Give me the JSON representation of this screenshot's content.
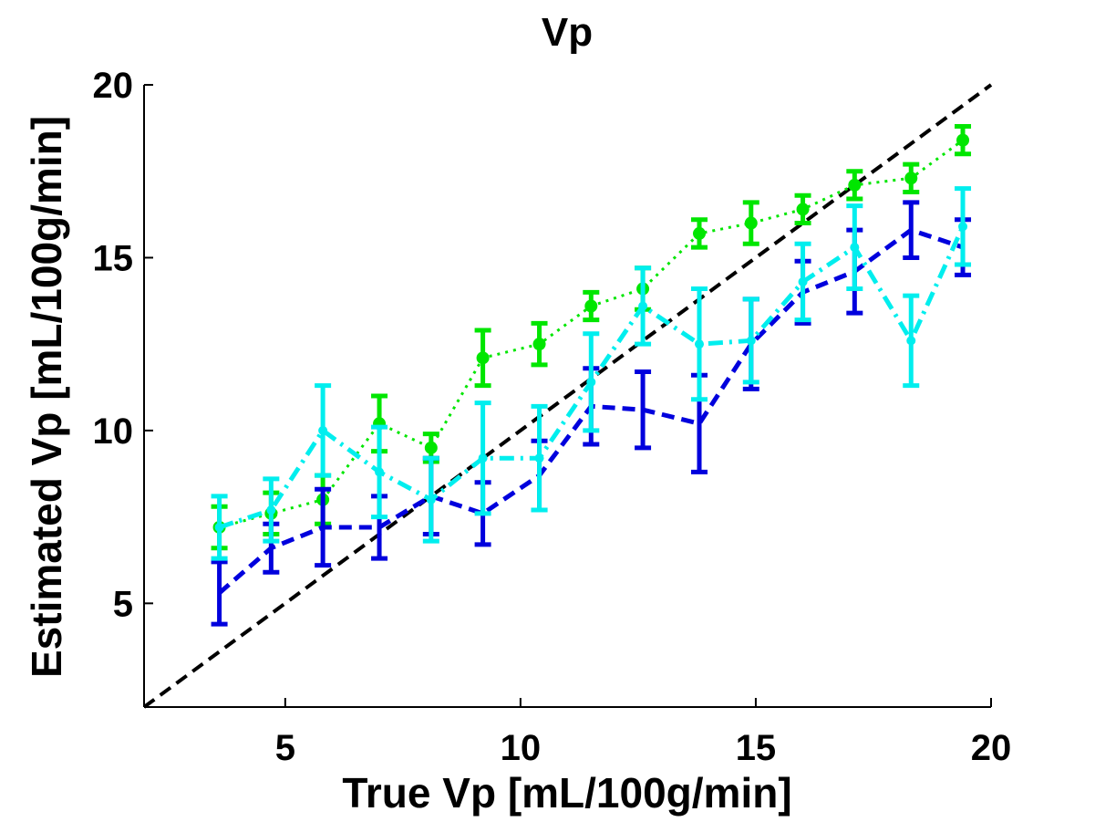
{
  "chart_data": {
    "type": "line",
    "title": "Vp",
    "xlabel": "True Vp [mL/100g/min]",
    "ylabel": "Estimated Vp [mL/100g/min]",
    "xlim": [
      2,
      20
    ],
    "ylim": [
      2,
      20
    ],
    "xticks": [
      5,
      10,
      15,
      20
    ],
    "yticks": [
      5,
      10,
      15,
      20
    ],
    "grid": false,
    "legend": "none",
    "identity_line": {
      "x": [
        2,
        20
      ],
      "y": [
        2,
        20
      ],
      "color": "#000000",
      "style": "dashed"
    },
    "series": [
      {
        "color": "#00e600",
        "style": "dotted",
        "marker": "circle",
        "x": [
          3.6,
          4.7,
          5.8,
          7.0,
          8.1,
          9.2,
          10.4,
          11.5,
          12.6,
          13.8,
          14.9,
          16.0,
          17.1,
          18.3,
          19.4
        ],
        "y": [
          7.2,
          7.6,
          8.0,
          10.2,
          9.5,
          12.1,
          12.5,
          13.6,
          14.1,
          15.7,
          16.0,
          16.4,
          17.1,
          17.3,
          18.4
        ],
        "err": [
          0.6,
          0.6,
          0.7,
          0.8,
          0.4,
          0.8,
          0.6,
          0.4,
          0.6,
          0.4,
          0.6,
          0.4,
          0.4,
          0.4,
          0.4
        ]
      },
      {
        "color": "#0000dd",
        "style": "dashed",
        "marker": "none",
        "x": [
          3.6,
          4.7,
          5.8,
          7.0,
          8.1,
          9.2,
          10.4,
          11.5,
          12.6,
          13.8,
          14.9,
          16.0,
          17.1,
          18.3,
          19.4
        ],
        "y": [
          5.3,
          6.6,
          7.2,
          7.2,
          8.1,
          7.6,
          8.7,
          10.7,
          10.6,
          10.2,
          12.5,
          14.0,
          14.6,
          15.8,
          15.3
        ],
        "err": [
          0.9,
          0.7,
          1.1,
          0.9,
          1.1,
          0.9,
          1.0,
          1.1,
          1.1,
          1.4,
          1.3,
          0.9,
          1.2,
          0.8,
          0.8
        ]
      },
      {
        "color": "#00eeee",
        "style": "dash-dot",
        "marker": "circle-small",
        "x": [
          3.6,
          4.7,
          5.8,
          7.0,
          8.1,
          9.2,
          10.4,
          11.5,
          12.6,
          13.8,
          14.9,
          16.0,
          17.1,
          18.3,
          19.4
        ],
        "y": [
          7.2,
          7.7,
          10.0,
          8.8,
          8.0,
          9.2,
          9.2,
          11.4,
          13.6,
          12.5,
          12.6,
          14.3,
          15.3,
          12.6,
          15.9
        ],
        "err": [
          0.9,
          0.9,
          1.3,
          1.3,
          1.2,
          1.6,
          1.5,
          1.4,
          1.1,
          1.6,
          1.2,
          1.1,
          1.2,
          1.3,
          1.1
        ]
      }
    ]
  }
}
